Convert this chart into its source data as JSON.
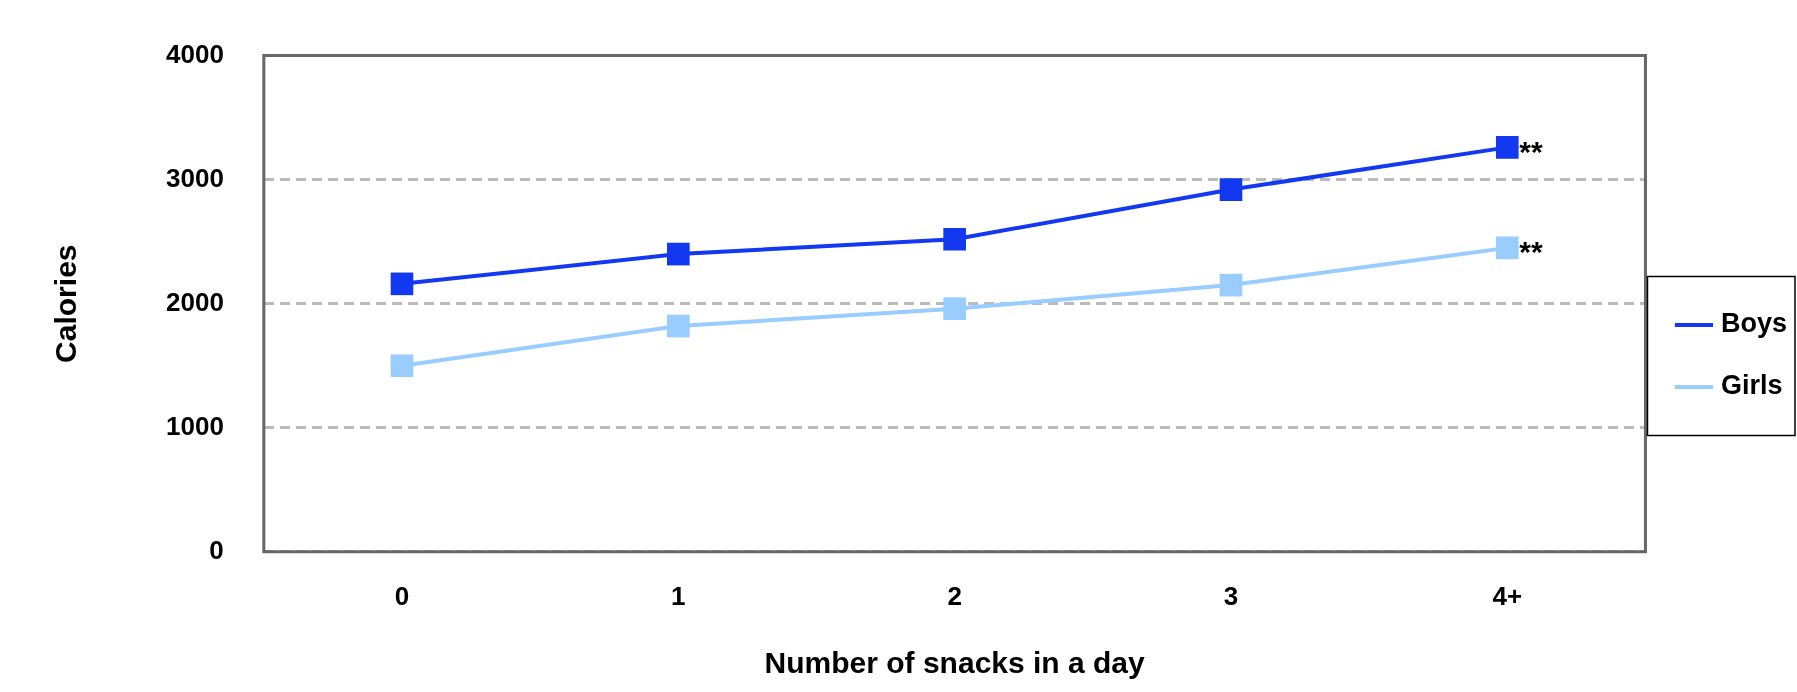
{
  "chart_data": {
    "type": "line",
    "xlabel": "Number of snacks in a day",
    "ylabel": "Calories",
    "categories": [
      "0",
      "1",
      "2",
      "3",
      "4+"
    ],
    "series": [
      {
        "name": "Boys",
        "color": "#1238f0",
        "values": [
          2160,
          2400,
          2520,
          2920,
          3260
        ]
      },
      {
        "name": "Girls",
        "color": "#99ccff",
        "values": [
          1500,
          1820,
          1960,
          2150,
          2450
        ]
      }
    ],
    "ylim": [
      0,
      4000
    ],
    "yticks": [
      0,
      1000,
      2000,
      3000,
      4000
    ],
    "grid": "y",
    "legend": "right",
    "marker": "square",
    "line_style": "solid",
    "annotations": [
      {
        "text": "**",
        "x": "4+",
        "y": 3260
      },
      {
        "text": "**",
        "x": "4+",
        "y": 2450
      }
    ]
  }
}
